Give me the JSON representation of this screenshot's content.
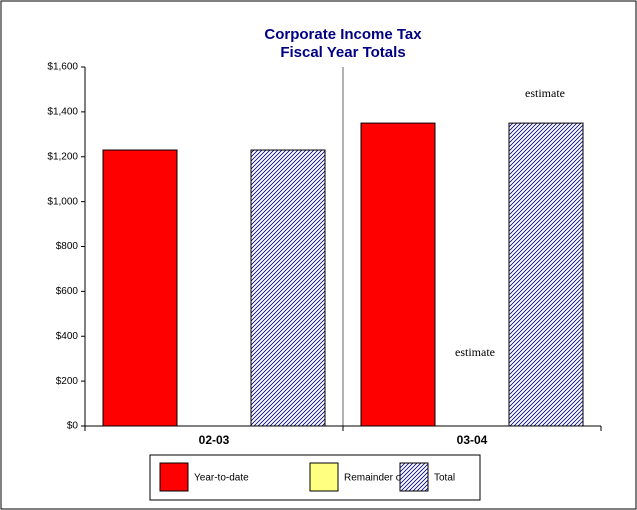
{
  "chart_data": {
    "type": "bar",
    "title": "Corporate Income Tax",
    "subtitle": "Fiscal Year Totals",
    "categories": [
      "02-03",
      "03-04"
    ],
    "series": [
      {
        "name": "Year-to-date",
        "color": "#ff0000",
        "values": [
          1230,
          1350
        ]
      },
      {
        "name": "Remainder of FY",
        "color": "#ffff80",
        "values": [
          0,
          0
        ]
      },
      {
        "name": "Total",
        "color": "#000080",
        "hatch": true,
        "values": [
          1230,
          1350
        ]
      }
    ],
    "ylim": [
      0,
      1600
    ],
    "yticks": [
      {
        "value": 0,
        "label": "$0"
      },
      {
        "value": 200,
        "label": "$200"
      },
      {
        "value": 400,
        "label": "$400"
      },
      {
        "value": 600,
        "label": "$600"
      },
      {
        "value": 800,
        "label": "$800"
      },
      {
        "value": 1000,
        "label": "$1,000"
      },
      {
        "value": 1200,
        "label": "$1,200"
      },
      {
        "value": 1400,
        "label": "$1,400"
      },
      {
        "value": 1600,
        "label": "$1,600"
      }
    ],
    "annotations": [
      "estimate",
      "estimate"
    ],
    "grid": false,
    "legend": "bottom"
  }
}
